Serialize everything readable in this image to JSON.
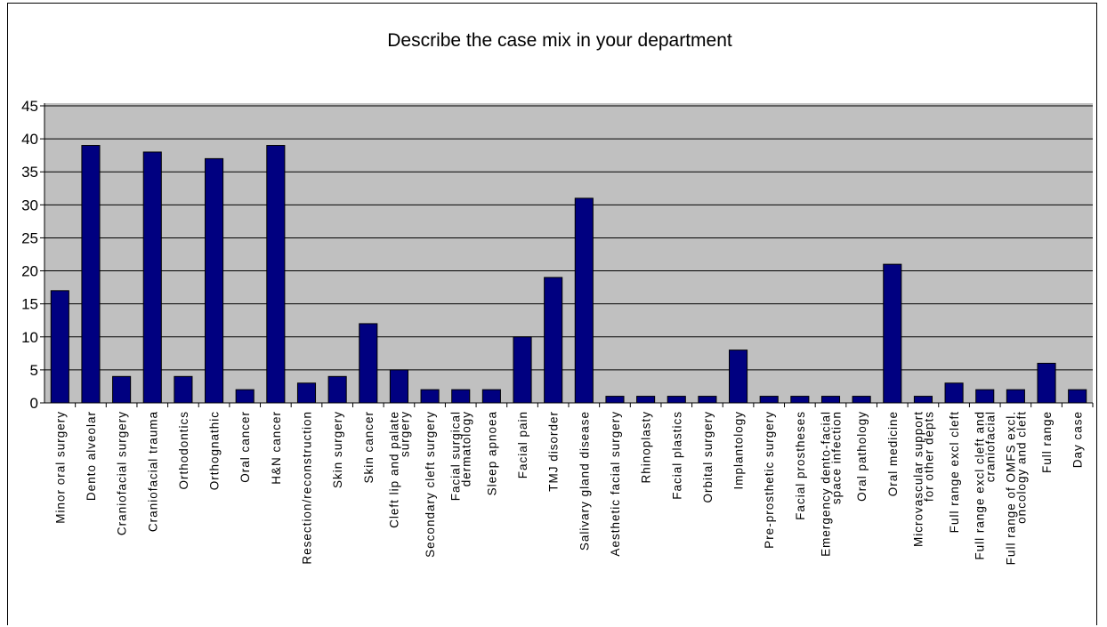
{
  "chart_data": {
    "type": "bar",
    "title": "Describe the case mix in your department",
    "xlabel": "",
    "ylabel": "",
    "ylim": [
      0,
      45
    ],
    "yticks": [
      0,
      5,
      10,
      15,
      20,
      25,
      30,
      35,
      40,
      45
    ],
    "grid": true,
    "legend": "none",
    "colors": {
      "bar": "#000080",
      "plot_background": "#c0c0c0",
      "gridline": "#000000"
    },
    "categories": [
      [
        "Minor oral surgery"
      ],
      [
        "Dento alveolar"
      ],
      [
        "Craniofacial surgery"
      ],
      [
        "Craniofacial trauma"
      ],
      [
        "Orthodontics"
      ],
      [
        "Orthognathic"
      ],
      [
        "Oral cancer"
      ],
      [
        "H&N cancer"
      ],
      [
        "Resection/reconstruction"
      ],
      [
        "Skin surgery"
      ],
      [
        "Skin cancer"
      ],
      [
        "Cleft lip and palate",
        "surgery"
      ],
      [
        "Secondary cleft surgery"
      ],
      [
        "Facial surgical",
        "dermatology"
      ],
      [
        "Sleep apnoea"
      ],
      [
        "Facial pain"
      ],
      [
        "TMJ disorder"
      ],
      [
        "Salivary gland disease"
      ],
      [
        "Aesthetic facial surgery"
      ],
      [
        "Rhinoplasty"
      ],
      [
        "Facial plastics"
      ],
      [
        "Orbital surgery"
      ],
      [
        "Implantology"
      ],
      [
        "Pre-prosthetic surgery"
      ],
      [
        "Facial prostheses"
      ],
      [
        "Emergency dento-facial",
        "space infection"
      ],
      [
        "Oral pathology"
      ],
      [
        "Oral medicine"
      ],
      [
        "Microvascular support",
        "for other depts"
      ],
      [
        "Full range excl cleft"
      ],
      [
        "Full range excl cleft and",
        "craniofacial"
      ],
      [
        "Full range of OMFS excl.",
        "oncology and cleft"
      ],
      [
        "Full range"
      ],
      [
        "Day case"
      ]
    ],
    "values": [
      17,
      39,
      4,
      38,
      4,
      37,
      2,
      39,
      3,
      4,
      12,
      5,
      2,
      2,
      2,
      10,
      19,
      31,
      1,
      1,
      1,
      1,
      8,
      1,
      1,
      1,
      1,
      21,
      1,
      3,
      2,
      2,
      6,
      2
    ]
  }
}
